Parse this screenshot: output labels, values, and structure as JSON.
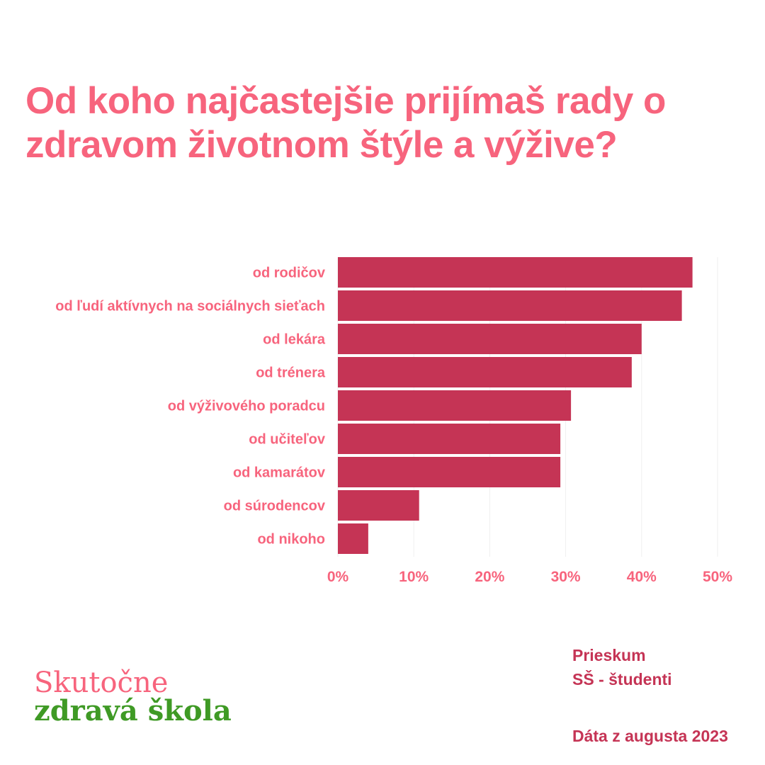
{
  "title": "Od koho najčastejšie prijímaš rady o zdravom životnom štýle a výžive?",
  "colors": {
    "title": "#f7647d",
    "bar": "#c53455",
    "labels": "#f7647d",
    "notes": "#c53455",
    "logo_top": "#f7647d",
    "logo_bottom": "#3f9a25"
  },
  "chart_data": {
    "type": "bar",
    "orientation": "horizontal",
    "categories": [
      "od rodičov",
      "od ľudí aktívnych na sociálnych sieťach",
      "od lekára",
      "od trénera",
      "od výživového poradcu",
      "od učiteľov",
      "od kamarátov",
      "od súrodencov",
      "od nikoho"
    ],
    "values": [
      46.7,
      45.3,
      40.0,
      38.7,
      30.7,
      29.3,
      29.3,
      10.7,
      4.0
    ],
    "xlim": [
      0,
      50
    ],
    "xticks": [
      "0%",
      "10%",
      "20%",
      "30%",
      "40%",
      "50%"
    ],
    "grid": true
  },
  "logo": {
    "line1": "Skutočne",
    "line2": "zdravá škola"
  },
  "notes": {
    "line1": "Prieskum",
    "line2": "SŠ - študenti",
    "line3": "Dáta z augusta 2023"
  }
}
